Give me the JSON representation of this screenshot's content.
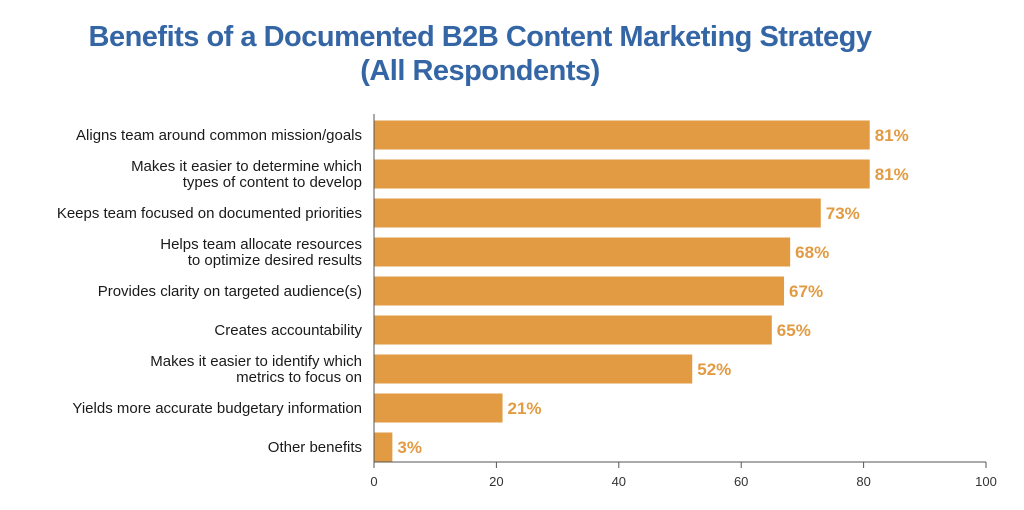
{
  "colors": {
    "title": "#3465A4",
    "bar": "#E29B42",
    "value_label": "#E29B42",
    "axis": "#555555"
  },
  "chart_data": {
    "type": "bar",
    "orientation": "horizontal",
    "title": "Benefits of a Documented B2B Content Marketing Strategy",
    "subtitle": "(All Respondents)",
    "xlabel": "",
    "ylabel": "",
    "xlim": [
      0,
      100
    ],
    "xticks": [
      0,
      20,
      40,
      60,
      80,
      100
    ],
    "grid": false,
    "categories": [
      [
        "Aligns team around common mission/goals"
      ],
      [
        "Makes it easier to determine which",
        "types of content to develop"
      ],
      [
        "Keeps team focused on documented priorities"
      ],
      [
        "Helps team allocate resources",
        "to optimize desired results"
      ],
      [
        "Provides clarity on targeted audience(s)"
      ],
      [
        "Creates accountability"
      ],
      [
        "Makes it easier to identify which",
        "metrics to focus on"
      ],
      [
        "Yields more accurate budgetary information"
      ],
      [
        "Other benefits"
      ]
    ],
    "values": [
      81,
      81,
      73,
      68,
      67,
      65,
      52,
      21,
      3
    ],
    "value_labels": [
      "81%",
      "81%",
      "73%",
      "68%",
      "67%",
      "65%",
      "52%",
      "21%",
      "3%"
    ]
  }
}
